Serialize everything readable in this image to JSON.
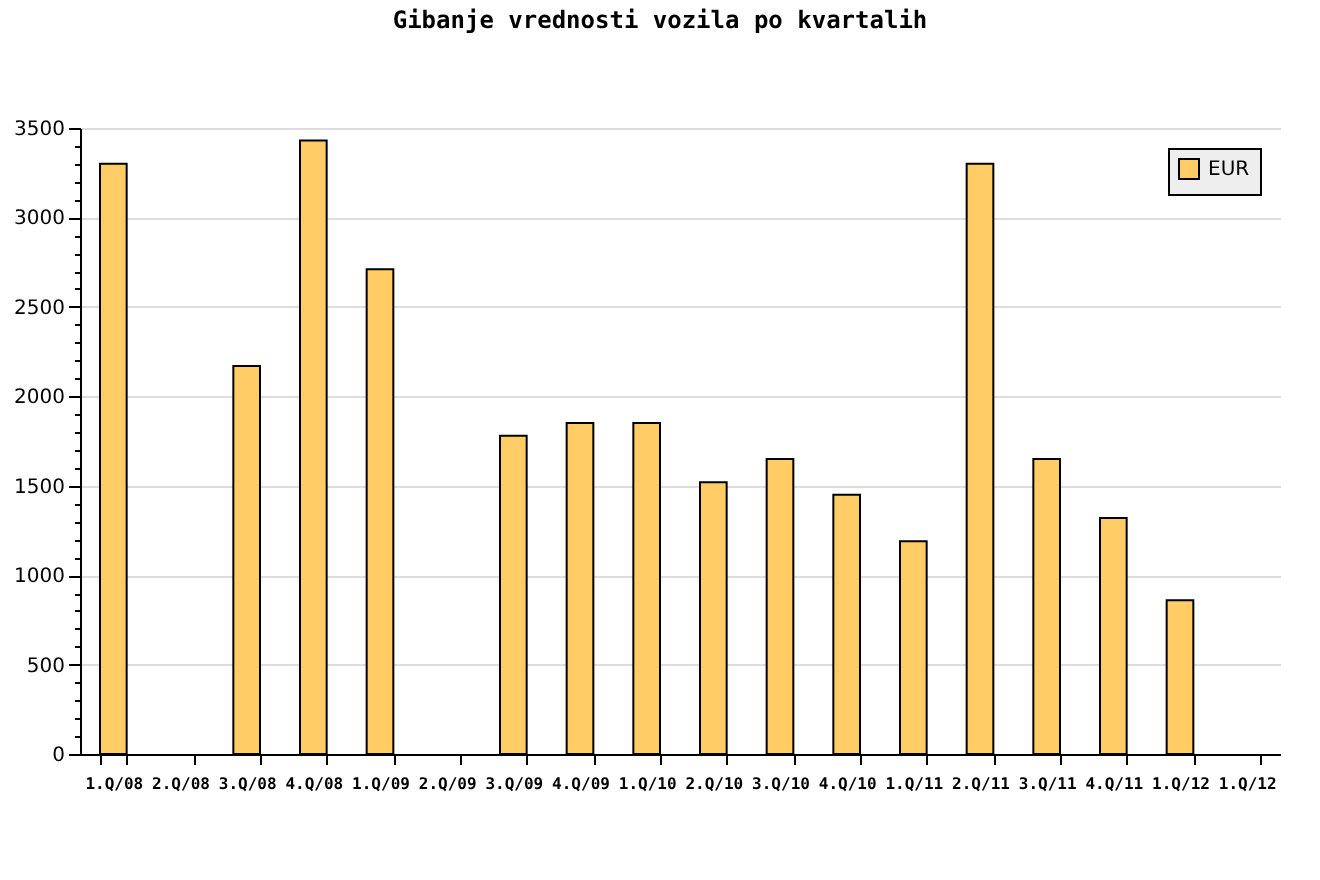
{
  "chart_data": {
    "type": "bar",
    "title": "Gibanje vrednosti vozila po kvartalih",
    "categories": [
      "1.Q/08",
      "2.Q/08",
      "3.Q/08",
      "4.Q/08",
      "1.Q/09",
      "2.Q/09",
      "3.Q/09",
      "4.Q/09",
      "1.Q/10",
      "2.Q/10",
      "3.Q/10",
      "4.Q/10",
      "1.Q/11",
      "2.Q/11",
      "3.Q/11",
      "4.Q/11",
      "1.Q/12",
      "1.Q/12"
    ],
    "series": [
      {
        "name": "EUR",
        "color": "#ffcc66",
        "values": [
          3300,
          null,
          2170,
          3430,
          2710,
          null,
          1780,
          1850,
          1850,
          1520,
          1650,
          1450,
          1190,
          3300,
          1650,
          1320,
          860,
          null
        ]
      }
    ],
    "ylim": [
      0,
      3500
    ],
    "yticks": [
      0,
      {
        "value": 100,
        "label": null
      },
      {
        "value": 200,
        "label": null
      },
      {
        "value": 300,
        "label": null
      },
      {
        "value": 400,
        "label": null
      },
      500,
      {
        "value": 600,
        "label": null
      },
      {
        "value": 700,
        "label": null
      },
      {
        "value": 800,
        "label": null
      },
      {
        "value": 900,
        "label": null
      },
      1000,
      {
        "value": 1100,
        "label": null
      },
      {
        "value": 1200,
        "label": null
      },
      {
        "value": 1300,
        "label": null
      },
      {
        "value": 1400,
        "label": null
      },
      1500,
      {
        "value": 1600,
        "label": null
      },
      {
        "value": 1700,
        "label": null
      },
      {
        "value": 1800,
        "label": null
      },
      {
        "value": 1900,
        "label": null
      },
      2000,
      {
        "value": 2100,
        "label": null
      },
      {
        "value": 2200,
        "label": null
      },
      {
        "value": 2300,
        "label": null
      },
      {
        "value": 2400,
        "label": null
      },
      2500,
      {
        "value": 2600,
        "label": null
      },
      {
        "value": 2700,
        "label": null
      },
      {
        "value": 2800,
        "label": null
      },
      {
        "value": 2900,
        "label": null
      },
      3000,
      {
        "value": 3100,
        "label": null
      },
      {
        "value": 3200,
        "label": null
      },
      {
        "value": 3300,
        "label": null
      },
      {
        "value": 3400,
        "label": null
      },
      3500
    ],
    "grid": "y",
    "legend": "top right"
  }
}
